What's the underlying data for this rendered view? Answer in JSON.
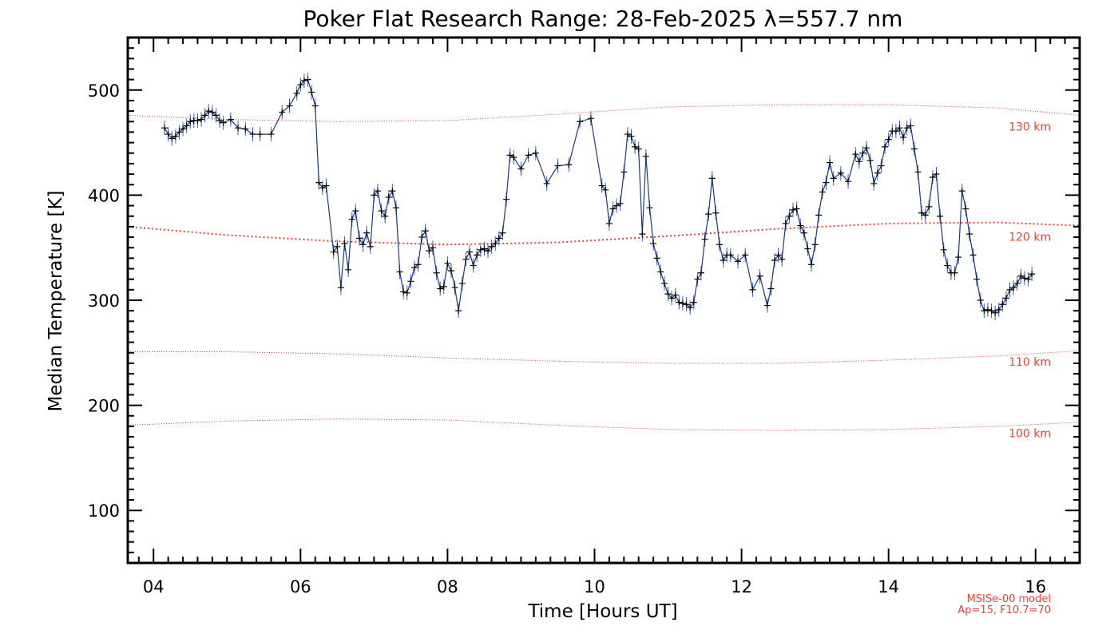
{
  "chart_data": {
    "type": "line",
    "title": "Poker Flat Research Range: 28-Feb-2025 λ=557.7 nm",
    "xlabel": "Time [Hours UT]",
    "ylabel": "Median Temperature [K]",
    "xlim": [
      3.65,
      16.6
    ],
    "ylim": [
      50,
      550
    ],
    "x_ticks": [
      4,
      6,
      8,
      10,
      12,
      14,
      16
    ],
    "x_tick_labels": [
      "04",
      "06",
      "08",
      "10",
      "12",
      "14",
      "16"
    ],
    "y_ticks": [
      100,
      200,
      300,
      400,
      500
    ],
    "y_tick_labels": [
      "100",
      "200",
      "300",
      "400",
      "500"
    ],
    "grid": false,
    "colors": {
      "measured": "#1a3a7a",
      "marker": "#000000",
      "errorbar": "#3a5fd0",
      "model": "#e8443a",
      "frame": "#000000"
    },
    "series": [
      {
        "points": [
          [
            4.15,
            464
          ],
          [
            4.2,
            458
          ],
          [
            4.25,
            454
          ],
          [
            4.3,
            456
          ],
          [
            4.35,
            460
          ],
          [
            4.4,
            463
          ],
          [
            4.45,
            466
          ],
          [
            4.5,
            470
          ],
          [
            4.55,
            471
          ],
          [
            4.6,
            471
          ],
          [
            4.65,
            472
          ],
          [
            4.7,
            476
          ],
          [
            4.75,
            480
          ],
          [
            4.8,
            479
          ],
          [
            4.85,
            476
          ],
          [
            4.9,
            471
          ],
          [
            4.95,
            469
          ],
          [
            5.05,
            472
          ],
          [
            5.15,
            464
          ],
          [
            5.25,
            463
          ],
          [
            5.35,
            458
          ],
          [
            5.45,
            458
          ],
          [
            5.6,
            458
          ],
          [
            5.75,
            479
          ],
          [
            5.85,
            485
          ],
          [
            5.95,
            497
          ],
          [
            6.0,
            505
          ],
          [
            6.05,
            509
          ],
          [
            6.1,
            510
          ],
          [
            6.15,
            498
          ],
          [
            6.2,
            485
          ],
          [
            6.25,
            412
          ],
          [
            6.3,
            407
          ],
          [
            6.35,
            409
          ],
          [
            6.45,
            346
          ],
          [
            6.5,
            351
          ],
          [
            6.55,
            312
          ],
          [
            6.6,
            354
          ],
          [
            6.65,
            329
          ],
          [
            6.7,
            377
          ],
          [
            6.75,
            385
          ],
          [
            6.8,
            359
          ],
          [
            6.85,
            353
          ],
          [
            6.9,
            364
          ],
          [
            6.95,
            351
          ],
          [
            7.0,
            400
          ],
          [
            7.05,
            404
          ],
          [
            7.1,
            385
          ],
          [
            7.15,
            380
          ],
          [
            7.2,
            398
          ],
          [
            7.25,
            404
          ],
          [
            7.3,
            388
          ],
          [
            7.35,
            327
          ],
          [
            7.4,
            308
          ],
          [
            7.45,
            307
          ],
          [
            7.5,
            318
          ],
          [
            7.55,
            331
          ],
          [
            7.6,
            334
          ],
          [
            7.65,
            360
          ],
          [
            7.7,
            366
          ],
          [
            7.75,
            347
          ],
          [
            7.8,
            350
          ],
          [
            7.85,
            326
          ],
          [
            7.9,
            311
          ],
          [
            7.95,
            313
          ],
          [
            8.0,
            335
          ],
          [
            8.05,
            328
          ],
          [
            8.1,
            312
          ],
          [
            8.15,
            290
          ],
          [
            8.2,
            316
          ],
          [
            8.25,
            339
          ],
          [
            8.3,
            346
          ],
          [
            8.35,
            333
          ],
          [
            8.4,
            343
          ],
          [
            8.45,
            348
          ],
          [
            8.5,
            349
          ],
          [
            8.55,
            347
          ],
          [
            8.6,
            351
          ],
          [
            8.65,
            354
          ],
          [
            8.7,
            359
          ],
          [
            8.75,
            364
          ],
          [
            8.8,
            396
          ],
          [
            8.85,
            438
          ],
          [
            8.9,
            436
          ],
          [
            9.0,
            425
          ],
          [
            9.1,
            438
          ],
          [
            9.2,
            440
          ],
          [
            9.35,
            411
          ],
          [
            9.5,
            428
          ],
          [
            9.65,
            429
          ],
          [
            9.8,
            470
          ],
          [
            9.95,
            473
          ],
          [
            10.1,
            409
          ],
          [
            10.15,
            405
          ],
          [
            10.2,
            373
          ],
          [
            10.25,
            387
          ],
          [
            10.3,
            390
          ],
          [
            10.35,
            392
          ],
          [
            10.4,
            422
          ],
          [
            10.45,
            458
          ],
          [
            10.5,
            456
          ],
          [
            10.55,
            446
          ],
          [
            10.6,
            444
          ],
          [
            10.65,
            363
          ],
          [
            10.7,
            437
          ],
          [
            10.75,
            388
          ],
          [
            10.8,
            354
          ],
          [
            10.85,
            340
          ],
          [
            10.9,
            327
          ],
          [
            10.95,
            316
          ],
          [
            11.0,
            306
          ],
          [
            11.05,
            302
          ],
          [
            11.1,
            305
          ],
          [
            11.15,
            298
          ],
          [
            11.2,
            297
          ],
          [
            11.25,
            296
          ],
          [
            11.3,
            293
          ],
          [
            11.35,
            298
          ],
          [
            11.4,
            320
          ],
          [
            11.45,
            326
          ],
          [
            11.5,
            358
          ],
          [
            11.55,
            382
          ],
          [
            11.6,
            416
          ],
          [
            11.65,
            383
          ],
          [
            11.7,
            353
          ],
          [
            11.75,
            338
          ],
          [
            11.8,
            343
          ],
          [
            11.85,
            343
          ],
          [
            11.95,
            337
          ],
          [
            12.05,
            343
          ],
          [
            12.15,
            310
          ],
          [
            12.25,
            323
          ],
          [
            12.35,
            295
          ],
          [
            12.4,
            311
          ],
          [
            12.45,
            338
          ],
          [
            12.5,
            343
          ],
          [
            12.55,
            339
          ],
          [
            12.6,
            373
          ],
          [
            12.65,
            380
          ],
          [
            12.7,
            386
          ],
          [
            12.75,
            387
          ],
          [
            12.8,
            371
          ],
          [
            12.85,
            364
          ],
          [
            12.9,
            349
          ],
          [
            12.95,
            334
          ],
          [
            13.0,
            353
          ],
          [
            13.05,
            381
          ],
          [
            13.1,
            403
          ],
          [
            13.15,
            412
          ],
          [
            13.2,
            431
          ],
          [
            13.25,
            416
          ],
          [
            13.35,
            421
          ],
          [
            13.45,
            413
          ],
          [
            13.55,
            439
          ],
          [
            13.6,
            432
          ],
          [
            13.65,
            440
          ],
          [
            13.7,
            445
          ],
          [
            13.75,
            433
          ],
          [
            13.8,
            411
          ],
          [
            13.85,
            421
          ],
          [
            13.9,
            428
          ],
          [
            13.95,
            446
          ],
          [
            14.0,
            453
          ],
          [
            14.05,
            461
          ],
          [
            14.1,
            461
          ],
          [
            14.15,
            464
          ],
          [
            14.2,
            455
          ],
          [
            14.25,
            464
          ],
          [
            14.3,
            466
          ],
          [
            14.35,
            444
          ],
          [
            14.4,
            422
          ],
          [
            14.45,
            383
          ],
          [
            14.5,
            381
          ],
          [
            14.55,
            389
          ],
          [
            14.6,
            417
          ],
          [
            14.65,
            420
          ],
          [
            14.7,
            380
          ],
          [
            14.75,
            348
          ],
          [
            14.8,
            333
          ],
          [
            14.85,
            326
          ],
          [
            14.9,
            326
          ],
          [
            14.95,
            341
          ],
          [
            15.0,
            404
          ],
          [
            15.05,
            387
          ],
          [
            15.1,
            363
          ],
          [
            15.15,
            343
          ],
          [
            15.2,
            320
          ],
          [
            15.25,
            300
          ],
          [
            15.3,
            290
          ],
          [
            15.35,
            291
          ],
          [
            15.4,
            290
          ],
          [
            15.45,
            288
          ],
          [
            15.5,
            291
          ],
          [
            15.55,
            296
          ],
          [
            15.6,
            302
          ],
          [
            15.65,
            310
          ],
          [
            15.7,
            312
          ],
          [
            15.75,
            316
          ],
          [
            15.8,
            323
          ],
          [
            15.85,
            321
          ],
          [
            15.9,
            320
          ],
          [
            15.95,
            325
          ]
        ]
      }
    ],
    "reference_curves": [
      {
        "label": "130 km",
        "x": [
          3.65,
          5.0,
          6.5,
          8.0,
          9.5,
          11.0,
          12.5,
          14.0,
          15.5,
          16.6
        ],
        "y": [
          476,
          472,
          470,
          471,
          477,
          484,
          486,
          486,
          483,
          476
        ]
      },
      {
        "label": "120 km",
        "x": [
          3.65,
          5.0,
          6.5,
          8.0,
          9.5,
          11.0,
          12.5,
          14.0,
          15.5,
          16.6
        ],
        "y": [
          370,
          362,
          356,
          353,
          355,
          361,
          368,
          373,
          374,
          371
        ]
      },
      {
        "label": "110 km",
        "x": [
          3.65,
          5.0,
          6.5,
          8.0,
          9.5,
          11.0,
          12.5,
          14.0,
          15.5,
          16.6
        ],
        "y": [
          251,
          251,
          249,
          245,
          242,
          240,
          240,
          243,
          247,
          252
        ]
      },
      {
        "label": "100 km",
        "x": [
          3.65,
          5.0,
          6.5,
          8.0,
          9.5,
          11.0,
          12.5,
          14.0,
          15.5,
          16.6
        ],
        "y": [
          181,
          185,
          187,
          186,
          181,
          177,
          176,
          177,
          180,
          184
        ]
      }
    ],
    "model_note": [
      "MSISe-00 model",
      "Ap=15, F10.7=70"
    ]
  }
}
